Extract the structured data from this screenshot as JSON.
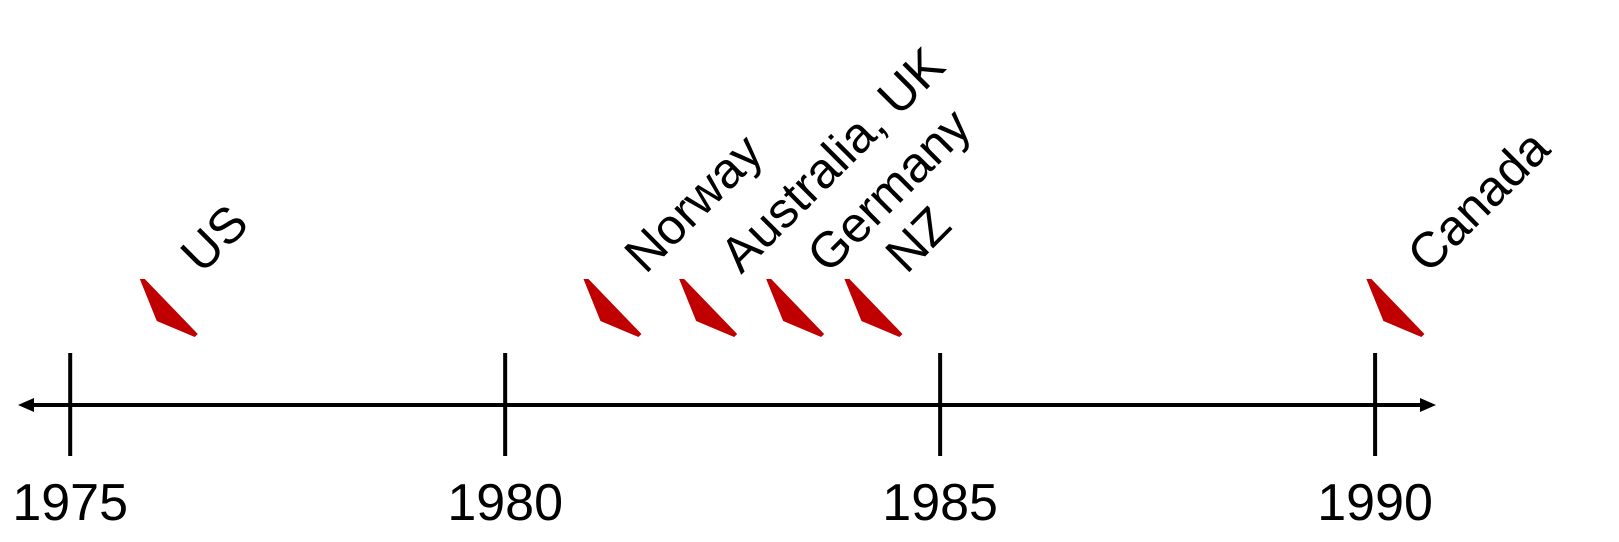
{
  "chart_data": {
    "type": "timeline",
    "categories": [
      "US",
      "Norway",
      "Australia, UK",
      "Germany",
      "NZ",
      "Canada"
    ],
    "x": [
      1975.8,
      1980.9,
      1982.0,
      1983.0,
      1983.9,
      1989.9
    ],
    "color": "#c00000",
    "xlim": [
      1974.4,
      1990.7
    ],
    "xticks": [
      1975,
      1980,
      1985,
      1990
    ]
  }
}
